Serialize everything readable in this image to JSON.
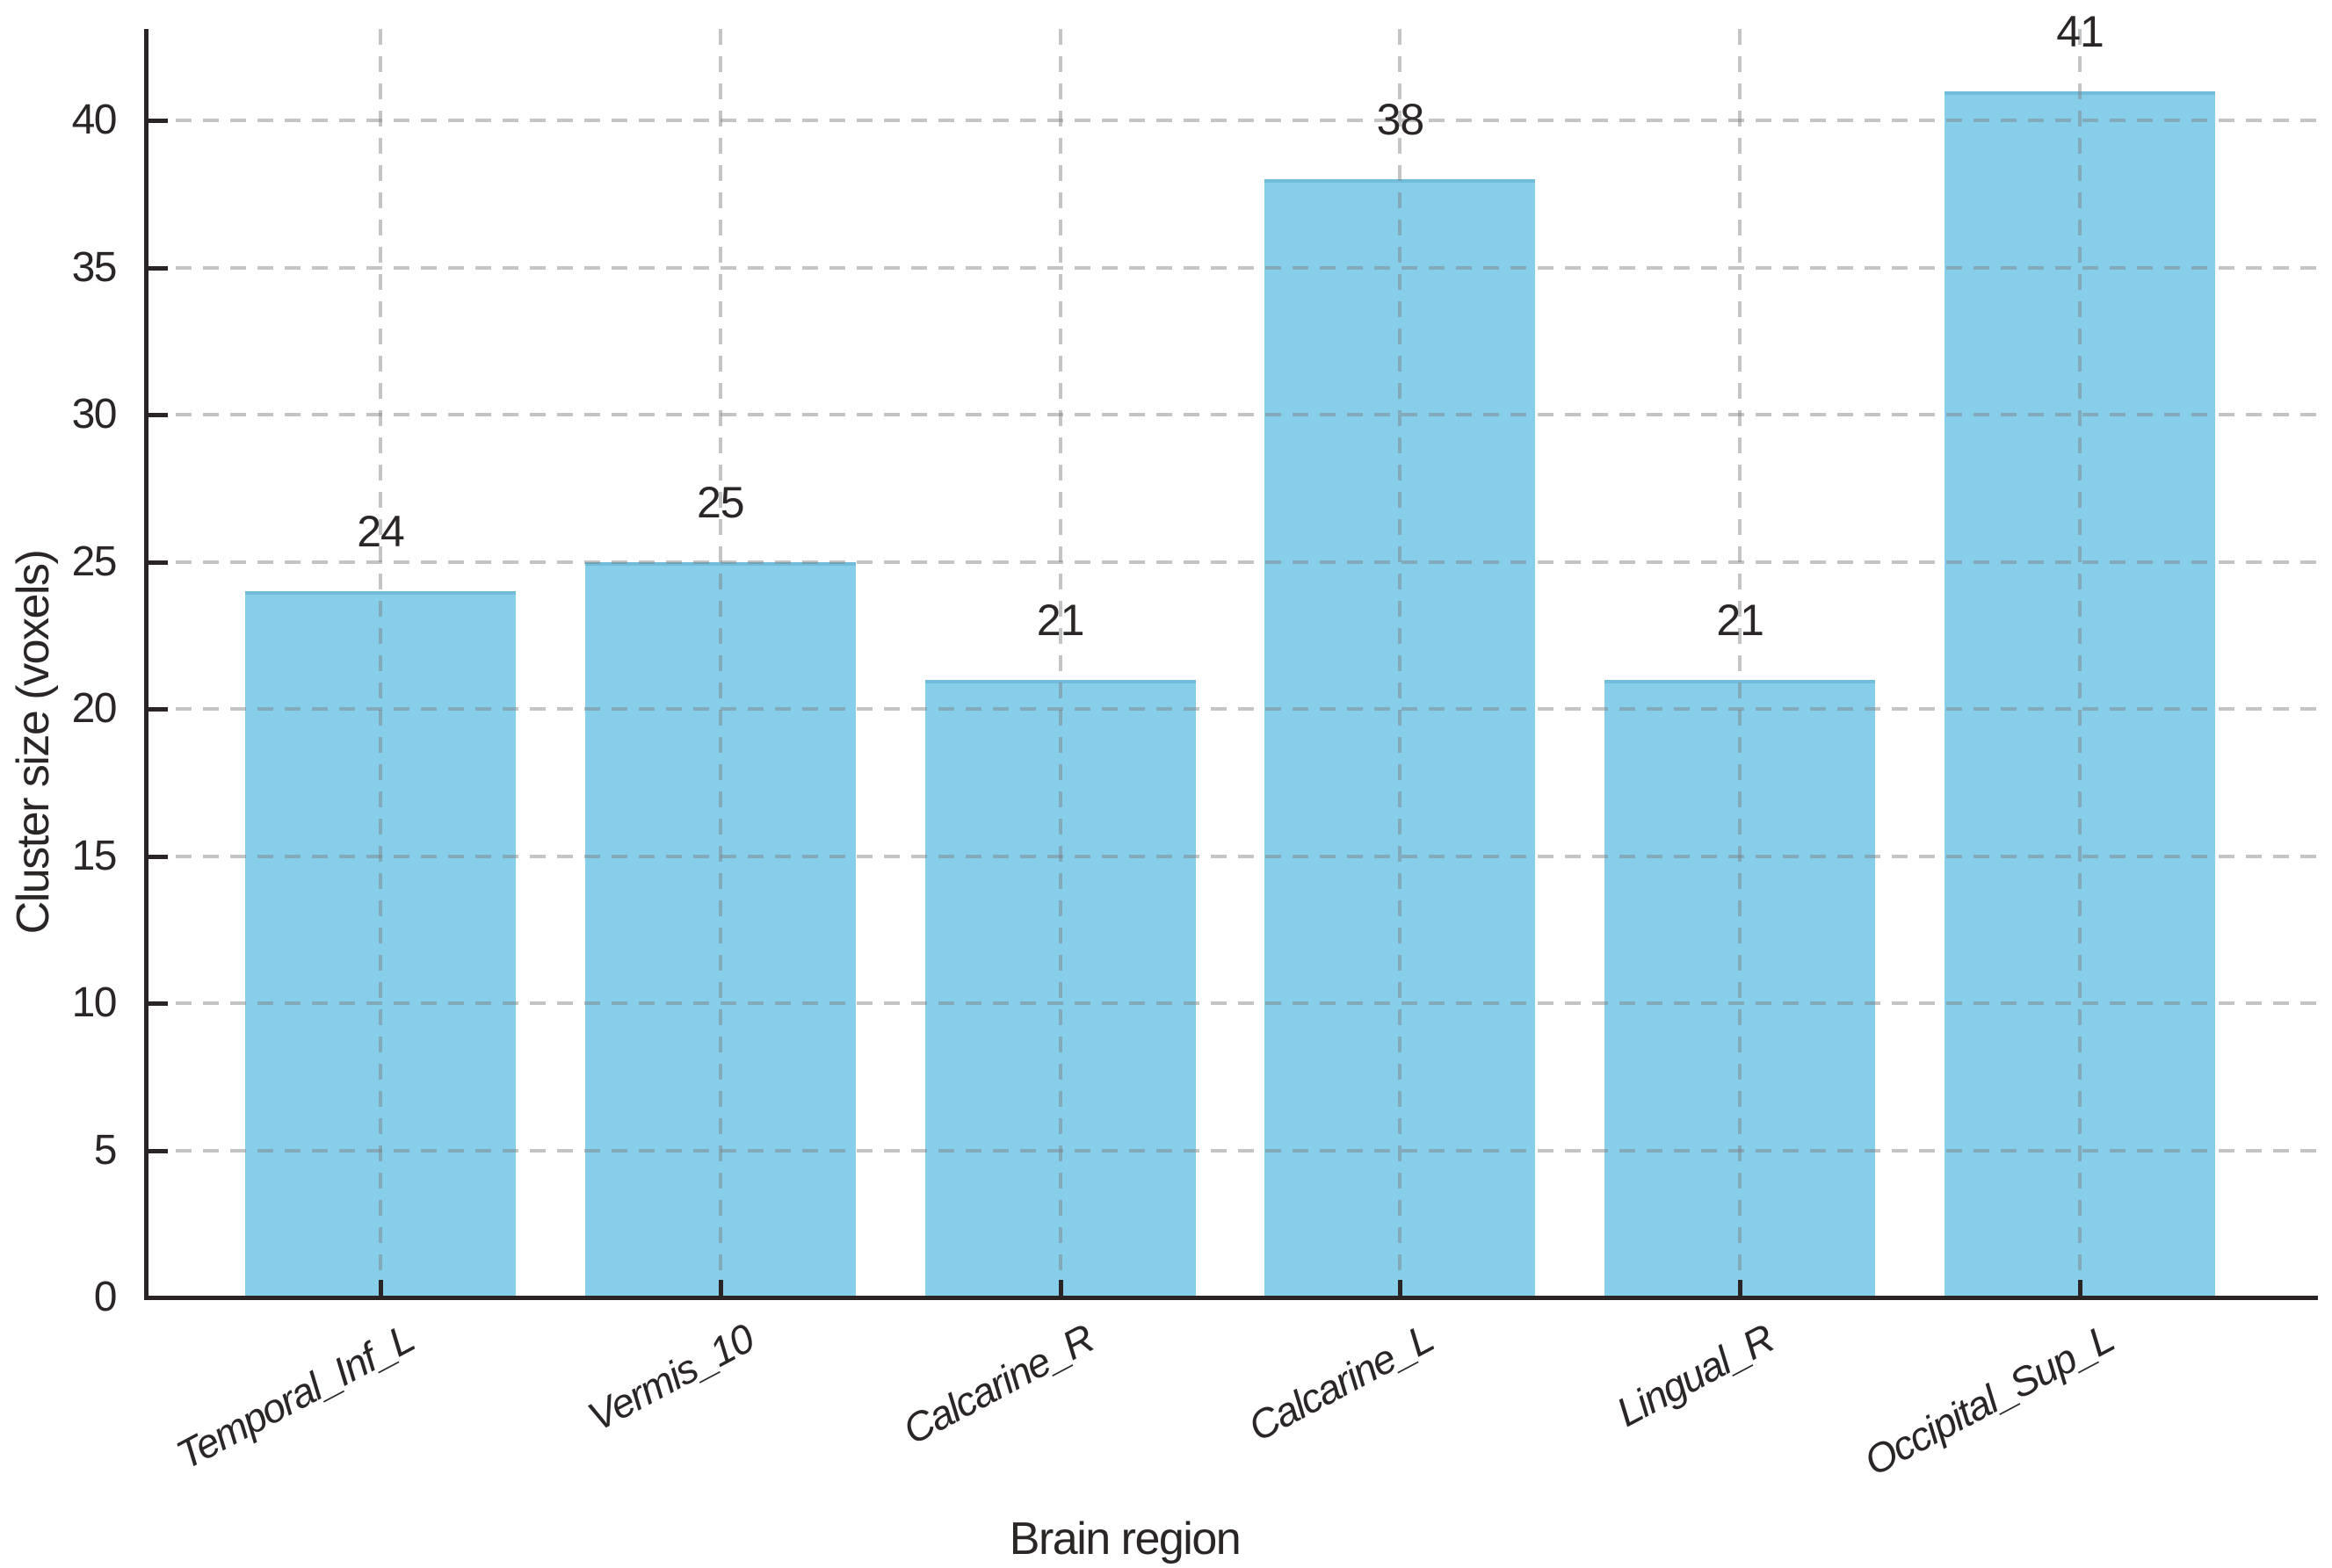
{
  "page": {
    "background": "#ffffff"
  },
  "chart_data": {
    "type": "bar",
    "title": "",
    "xlabel": "Brain region",
    "ylabel": "Cluster size (voxels)",
    "categories": [
      "Temporal_Inf_L",
      "Vermis_10",
      "Calcarine_R",
      "Calcarine_L",
      "Lingual_R",
      "Occipital_Sup_L"
    ],
    "values": [
      24,
      25,
      21,
      38,
      21,
      41
    ],
    "bar_labels": [
      "24",
      "25",
      "21",
      "38",
      "21",
      "41"
    ],
    "yticks": [
      0,
      5,
      10,
      15,
      20,
      25,
      30,
      35,
      40
    ],
    "ytick_labels": [
      "0",
      "5",
      "10",
      "15",
      "20",
      "25",
      "30",
      "35",
      "40"
    ],
    "ylim": [
      0,
      43
    ],
    "grid": "dashed, horizontal and vertical, drawn over bars",
    "legend_position": "none",
    "colors": {
      "bar_fill": "#87CEEB",
      "grid": "#bdbdbd",
      "axis": "#2a2424",
      "text": "#2b2626",
      "background": "#ffffff"
    }
  }
}
